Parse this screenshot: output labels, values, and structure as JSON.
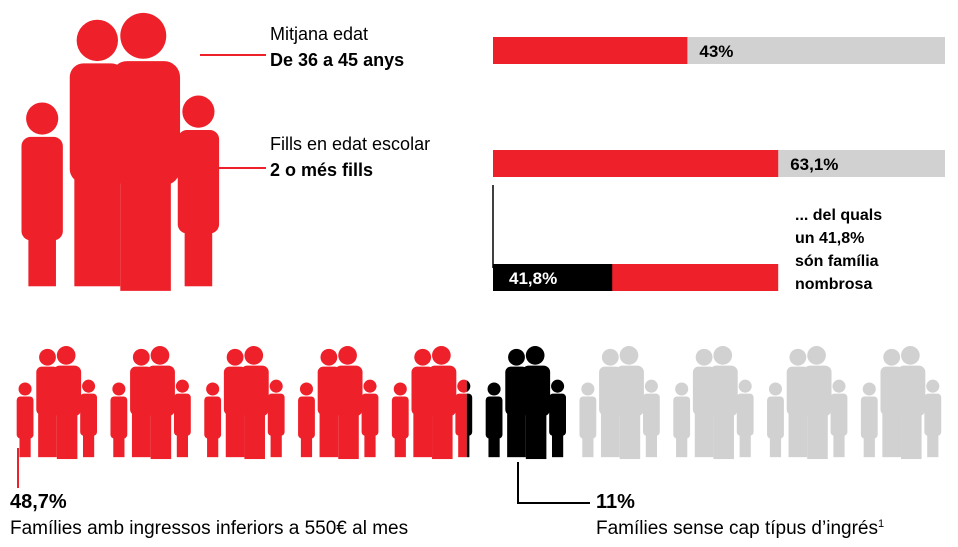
{
  "age": {
    "label": "Mitjana edat",
    "value_text": "De 36 a 45 anys",
    "percent": 43,
    "percent_label": "43%"
  },
  "children": {
    "label": "Fills en edat escolar",
    "value_text": "2 o més fills",
    "percent": 63.1,
    "percent_label": "63,1%",
    "large_family": {
      "percent": 41.8,
      "percent_label": "41,8%",
      "note_lines": [
        "... del quals",
        "un 41,8%",
        "són família",
        "nombrosa"
      ]
    }
  },
  "income": {
    "low": {
      "percent": 48.7,
      "percent_label": "48,7%",
      "text": "Famílies amb ingressos inferiors a 550€ al mes"
    },
    "none": {
      "percent": 11,
      "percent_label": "11%",
      "text": "Famílies sense cap típus d’ingrés",
      "footnote": "1"
    }
  }
}
